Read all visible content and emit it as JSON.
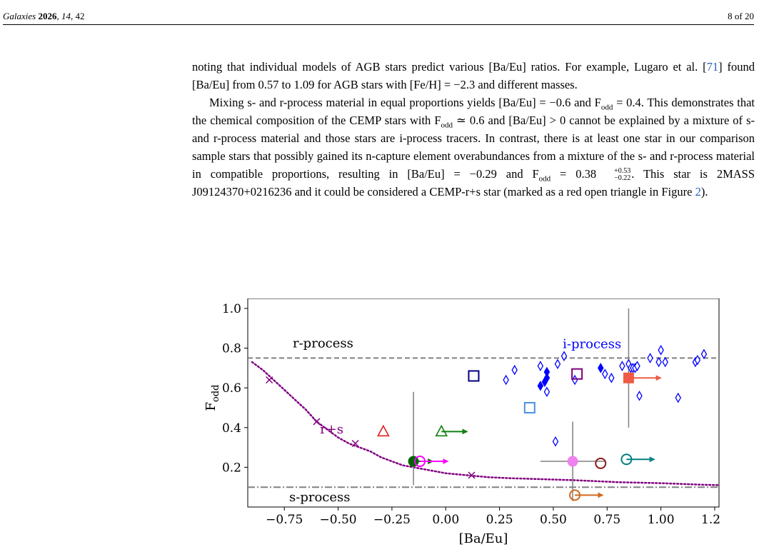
{
  "header": {
    "journal": "Galaxies",
    "year": "2026",
    "volume": "14",
    "article": "42",
    "page": "8 of 20"
  },
  "text": {
    "p1": {
      "a": "noting that individual models of AGB stars predict various [Ba/Eu] ratios. For example, Lugaro et al. [",
      "cite": "71",
      "b": "] found [Ba/Eu] from 0.57 to 1.09 for AGB stars with [Fe/H] = −2.3 and different masses."
    },
    "p2": {
      "a": "Mixing s- and r-process material in equal proportions yields [Ba/Eu] = −0.6 and F",
      "sub1": "odd",
      "b": " = 0.4. This demonstrates that the chemical composition of the CEMP stars with F",
      "sub2": "odd",
      "c": " ≃ 0.6 and [Ba/Eu] > 0 cannot be explained by a mixture of s- and r-process material and those stars are i-process tracers. In contrast, there is at least one star in our comparison sample stars that possibly gained its n-capture element overabundances from a mixture of the s- and r-process material in compatible proportions, resulting in [Ba/Eu] = −0.29 and F",
      "sub3": "odd",
      "d": " = 0.38",
      "err_plus": "+0.53",
      "err_minus": "−0.22",
      "e": ". This star is 2MASS J09124370+0216236 and it could be considered a CEMP-r+s star (marked as a red open triangle in Figure ",
      "fig_ref": "2",
      "f": ")."
    }
  },
  "chart_data": {
    "type": "scatter",
    "xlabel": "[Ba/Eu]",
    "ylabel": "F",
    "ylabel_sub": "odd",
    "xlim": [
      -0.92,
      1.27
    ],
    "ylim": [
      0.0,
      1.05
    ],
    "xticks": [
      -0.75,
      -0.5,
      -0.25,
      0.0,
      0.25,
      0.5,
      0.75,
      1.0,
      1.25
    ],
    "xtick_labels": [
      "−0.75",
      "−0.50",
      "−0.25",
      "0.00",
      "0.25",
      "0.50",
      "0.75",
      "1.00",
      "1.25"
    ],
    "yticks": [
      0.2,
      0.4,
      0.6,
      0.8,
      1.0
    ],
    "ytick_labels": [
      "0.2",
      "0.4",
      "0.6",
      "0.8",
      "1.0"
    ],
    "reference_lines": [
      {
        "label": "r-process",
        "y": 0.75,
        "style": "dashed",
        "color": "#808080"
      },
      {
        "label": "s-process",
        "y": 0.1,
        "style": "dashdot",
        "color": "#808080"
      }
    ],
    "annotations": [
      {
        "text": "i-process",
        "x": 0.68,
        "y": 0.8,
        "color": "#0000ff"
      },
      {
        "text": "r+s",
        "x": -0.53,
        "y": 0.37,
        "color": "#800080"
      }
    ],
    "mixing_curve": {
      "label": "r+s",
      "color": "#800080",
      "style": "dotted",
      "x": [
        -0.9,
        -0.85,
        -0.8,
        -0.75,
        -0.7,
        -0.65,
        -0.6,
        -0.55,
        -0.5,
        -0.45,
        -0.4,
        -0.35,
        -0.3,
        -0.25,
        -0.2,
        -0.15,
        -0.1,
        -0.05,
        0.0,
        0.1,
        0.2,
        0.3,
        0.45,
        0.6,
        0.8,
        1.0,
        1.2,
        1.27
      ],
      "y": [
        0.73,
        0.69,
        0.64,
        0.59,
        0.54,
        0.49,
        0.43,
        0.39,
        0.35,
        0.32,
        0.3,
        0.28,
        0.25,
        0.23,
        0.21,
        0.2,
        0.19,
        0.18,
        0.17,
        0.16,
        0.15,
        0.145,
        0.14,
        0.135,
        0.125,
        0.12,
        0.112,
        0.11
      ],
      "markers": [
        {
          "x": -0.82,
          "y": 0.64
        },
        {
          "x": -0.6,
          "y": 0.43
        },
        {
          "x": -0.42,
          "y": 0.32
        },
        {
          "x": 0.12,
          "y": 0.16
        }
      ]
    },
    "series": [
      {
        "marker": "diamond-open",
        "color": "#0000ff",
        "points": [
          {
            "x": 0.28,
            "y": 0.64
          },
          {
            "x": 0.32,
            "y": 0.69
          },
          {
            "x": 0.44,
            "y": 0.71
          },
          {
            "x": 0.47,
            "y": 0.58
          },
          {
            "x": 0.51,
            "y": 0.33
          },
          {
            "x": 0.52,
            "y": 0.72
          },
          {
            "x": 0.55,
            "y": 0.76
          },
          {
            "x": 0.6,
            "y": 0.64
          },
          {
            "x": 0.74,
            "y": 0.67
          },
          {
            "x": 0.77,
            "y": 0.65
          },
          {
            "x": 0.82,
            "y": 0.71
          },
          {
            "x": 0.85,
            "y": 0.72
          },
          {
            "x": 0.86,
            "y": 0.7
          },
          {
            "x": 0.87,
            "y": 0.7
          },
          {
            "x": 0.88,
            "y": 0.7
          },
          {
            "x": 0.89,
            "y": 0.71
          },
          {
            "x": 0.9,
            "y": 0.56
          },
          {
            "x": 0.95,
            "y": 0.75
          },
          {
            "x": 0.99,
            "y": 0.73
          },
          {
            "x": 1.0,
            "y": 0.79
          },
          {
            "x": 1.02,
            "y": 0.73
          },
          {
            "x": 1.08,
            "y": 0.55
          },
          {
            "x": 1.16,
            "y": 0.73
          },
          {
            "x": 1.17,
            "y": 0.74
          },
          {
            "x": 1.2,
            "y": 0.77
          }
        ]
      },
      {
        "marker": "diamond-filled",
        "color": "#0000ff",
        "points": [
          {
            "x": 0.44,
            "y": 0.61
          },
          {
            "x": 0.46,
            "y": 0.63
          },
          {
            "x": 0.47,
            "y": 0.65
          },
          {
            "x": 0.47,
            "y": 0.68
          },
          {
            "x": 0.72,
            "y": 0.7
          }
        ]
      },
      {
        "marker": "square-open",
        "color": "#000080",
        "points": [
          {
            "x": 0.13,
            "y": 0.66
          }
        ]
      },
      {
        "marker": "square-open",
        "color": "#4a90e2",
        "points": [
          {
            "x": 0.39,
            "y": 0.5
          }
        ]
      },
      {
        "marker": "square-open",
        "color": "#800080",
        "points": [
          {
            "x": 0.61,
            "y": 0.67
          }
        ]
      },
      {
        "marker": "square-filled",
        "color": "#f05a46",
        "points": [
          {
            "x": 0.85,
            "y": 0.65,
            "yerr": [
              0.25,
              0.35
            ],
            "arrow": 0.15
          }
        ]
      },
      {
        "marker": "triangle-open",
        "color": "#e02020",
        "points": [
          {
            "x": -0.29,
            "y": 0.38
          }
        ]
      },
      {
        "marker": "triangle-open",
        "color": "#108010",
        "points": [
          {
            "x": -0.02,
            "y": 0.38,
            "arrow": 0.12
          }
        ]
      },
      {
        "marker": "circle-filled",
        "color": "#006400",
        "points": [
          {
            "x": -0.15,
            "y": 0.23,
            "yerr": [
              0.12,
              0.35
            ],
            "arrow": 0.09
          }
        ]
      },
      {
        "marker": "circle-open",
        "color": "#ff00ff",
        "points": [
          {
            "x": -0.12,
            "y": 0.23,
            "arrow": 0.13
          }
        ]
      },
      {
        "marker": "circle-filled",
        "color": "#ee82ee",
        "points": [
          {
            "x": 0.59,
            "y": 0.23,
            "xerr": [
              0.15,
              0.15
            ],
            "yerr": [
              0.2,
              0.2
            ]
          }
        ]
      },
      {
        "marker": "circle-open",
        "color": "#8b1a1a",
        "points": [
          {
            "x": 0.72,
            "y": 0.22
          }
        ]
      },
      {
        "marker": "circle-open",
        "color": "#008080",
        "points": [
          {
            "x": 0.84,
            "y": 0.24,
            "arrow": 0.13
          }
        ]
      },
      {
        "marker": "circle-open",
        "color": "#d2691e",
        "points": [
          {
            "x": 0.6,
            "y": 0.06,
            "arrow": 0.13
          }
        ]
      }
    ]
  }
}
